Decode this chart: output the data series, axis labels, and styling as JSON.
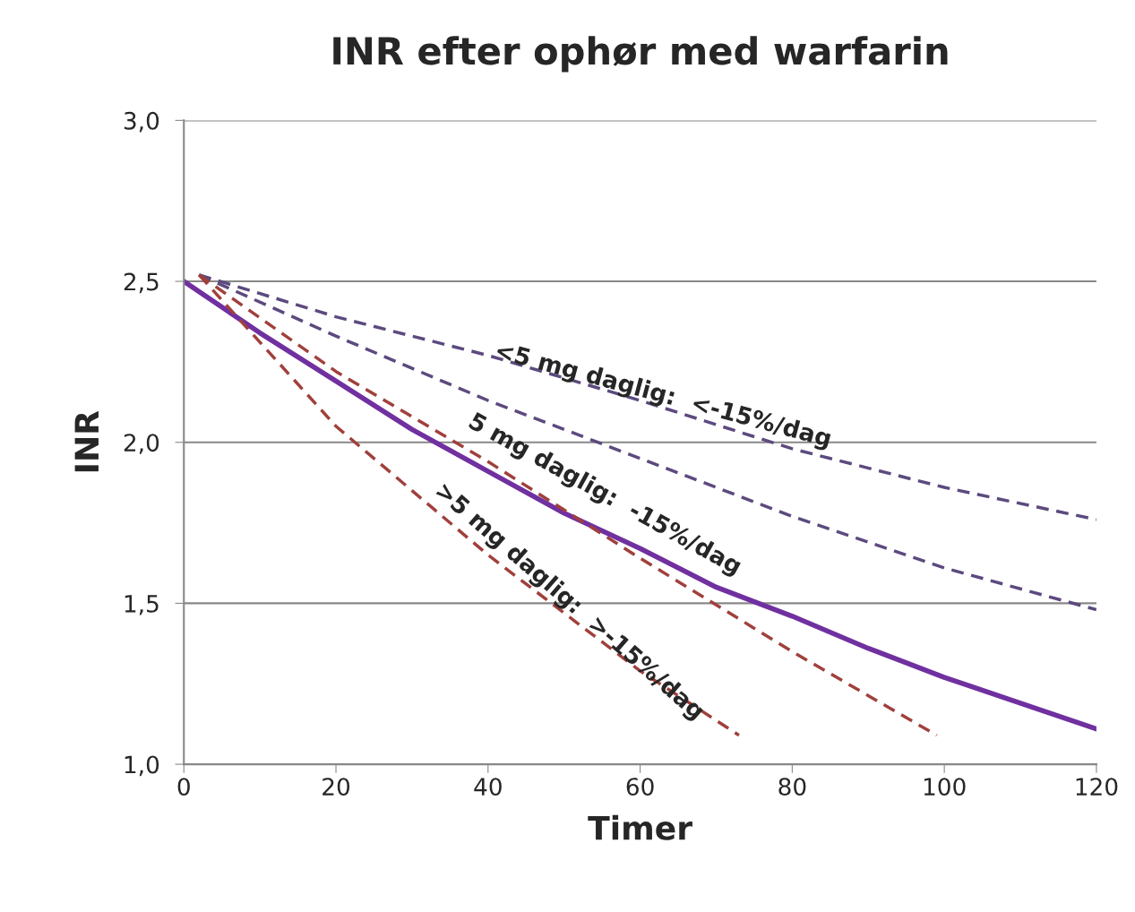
{
  "chart_data": {
    "type": "line",
    "title": "INR efter ophør med warfarin",
    "xlabel": "Timer",
    "ylabel": "INR",
    "xlim": [
      0,
      120
    ],
    "ylim": [
      1.0,
      3.0
    ],
    "xticks": [
      0,
      20,
      40,
      60,
      80,
      100,
      120
    ],
    "yticks": [
      {
        "value": 1.0,
        "label": "1,0"
      },
      {
        "value": 1.5,
        "label": "1,5"
      },
      {
        "value": 2.0,
        "label": "2,0"
      },
      {
        "value": 2.5,
        "label": "2,5"
      },
      {
        "value": 3.0,
        "label": "3,0"
      }
    ],
    "grid": "y",
    "marker": "none",
    "series": [
      {
        "color": "#5c4a7f",
        "line_style": "dashed",
        "x": [
          2,
          20,
          40,
          60,
          80,
          100,
          120
        ],
        "values": [
          2.52,
          2.39,
          2.27,
          2.13,
          1.98,
          1.86,
          1.76
        ]
      },
      {
        "color": "#5c4a7f",
        "line_style": "dashed",
        "x": [
          2,
          20,
          40,
          60,
          80,
          100,
          120
        ],
        "values": [
          2.52,
          2.33,
          2.13,
          1.95,
          1.77,
          1.61,
          1.48
        ]
      },
      {
        "color": "#7030a0",
        "line_style": "solid",
        "x": [
          0,
          10,
          20,
          30,
          40,
          50,
          60,
          70,
          80,
          90,
          100,
          110,
          120
        ],
        "values": [
          2.5,
          2.34,
          2.19,
          2.04,
          1.91,
          1.78,
          1.67,
          1.55,
          1.46,
          1.36,
          1.27,
          1.19,
          1.11
        ]
      },
      {
        "color": "#a0403c",
        "line_style": "dashed",
        "x": [
          2,
          20,
          40,
          60,
          80,
          99
        ],
        "values": [
          2.52,
          2.22,
          1.94,
          1.64,
          1.35,
          1.09
        ]
      },
      {
        "color": "#a0403c",
        "line_style": "dashed",
        "x": [
          2,
          20,
          40,
          60,
          73
        ],
        "values": [
          2.52,
          2.05,
          1.65,
          1.29,
          1.09
        ]
      }
    ],
    "annotations": [
      "<5 mg daglig:  <-15%/dag",
      "5 mg daglig:  -15%/dag",
      ">5 mg daglig:  >-15%/dag"
    ]
  }
}
